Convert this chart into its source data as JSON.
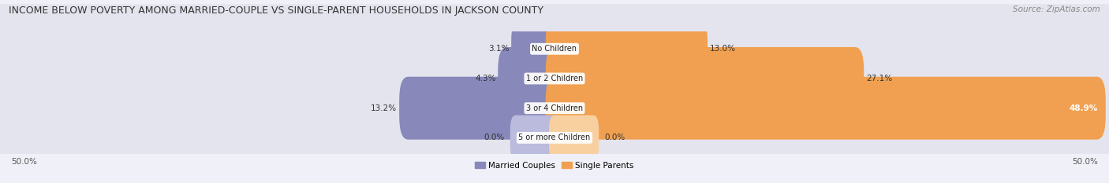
{
  "title": "INCOME BELOW POVERTY AMONG MARRIED-COUPLE VS SINGLE-PARENT HOUSEHOLDS IN JACKSON COUNTY",
  "source": "Source: ZipAtlas.com",
  "categories": [
    "No Children",
    "1 or 2 Children",
    "3 or 4 Children",
    "5 or more Children"
  ],
  "married_values": [
    3.1,
    4.3,
    13.2,
    0.0
  ],
  "single_values": [
    13.0,
    27.1,
    48.9,
    0.0
  ],
  "married_color": "#8888bb",
  "married_color_light": "#bbbbdd",
  "single_color": "#f0a050",
  "single_color_light": "#f8d0a0",
  "bar_bg_color": "#e4e4ee",
  "axis_max": 50.0,
  "legend_married": "Married Couples",
  "legend_single": "Single Parents",
  "title_fontsize": 9.0,
  "source_fontsize": 7.5,
  "label_fontsize": 7.5,
  "category_fontsize": 7.0,
  "axis_label_fontsize": 7.5,
  "background_color": "#f0f0f8"
}
